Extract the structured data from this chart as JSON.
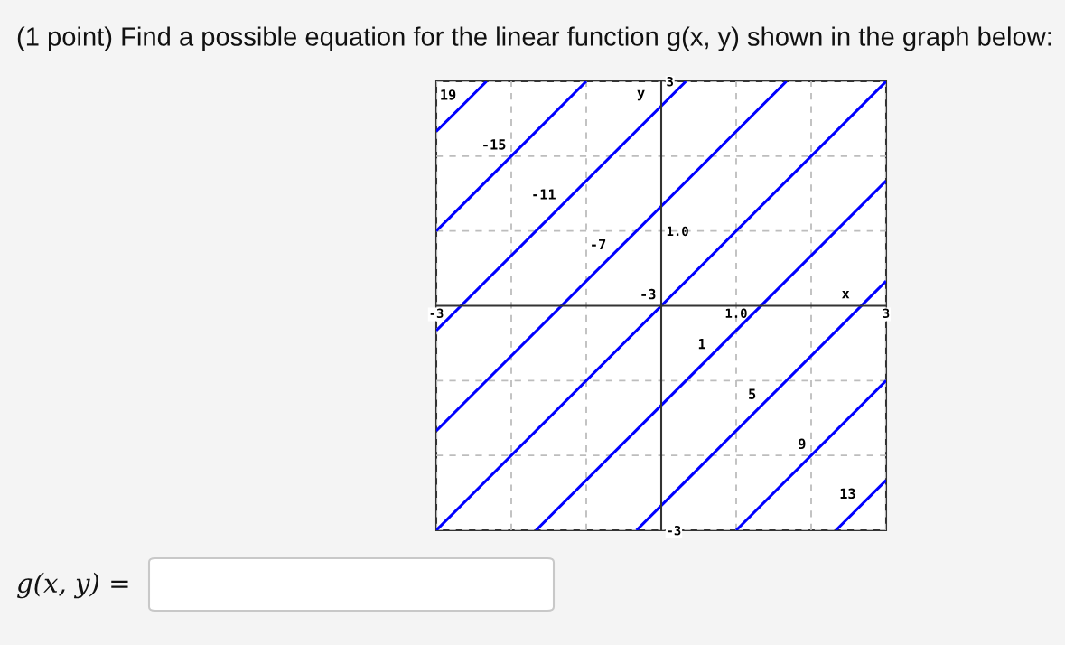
{
  "chart_data": {
    "type": "line",
    "title": "(1 point) Find a possible equation for the linear function g(x, y) shown in the graph below:",
    "xlabel": "x",
    "ylabel": "y",
    "xlim": [
      -3,
      3
    ],
    "ylim": [
      -3,
      3
    ],
    "xticks": [
      -3,
      {
        "value": -2,
        "label": null
      },
      {
        "value": -1,
        "label": null
      },
      {
        "value": 1,
        "label": "1.0"
      },
      {
        "value": 2,
        "label": null
      },
      3
    ],
    "yticks": [
      -3,
      {
        "value": -2,
        "label": null
      },
      {
        "value": -1,
        "label": null
      },
      {
        "value": 1,
        "label": "1.0"
      },
      {
        "value": 2,
        "label": null
      },
      3
    ],
    "grid": true,
    "series": [
      {
        "name": "19",
        "color": "#0000ff",
        "x": [
          -3,
          -2.33
        ],
        "values": [
          2.33,
          3
        ]
      },
      {
        "name": "-15",
        "color": "#0000ff",
        "x": [
          -3,
          -1
        ],
        "values": [
          1,
          3
        ]
      },
      {
        "name": "-11",
        "color": "#0000ff",
        "x": [
          -3,
          0.33
        ],
        "values": [
          -0.33,
          3
        ]
      },
      {
        "name": "-7",
        "color": "#0000ff",
        "x": [
          -3,
          1.67
        ],
        "values": [
          -1.67,
          3
        ]
      },
      {
        "name": "-3",
        "color": "#0000ff",
        "x": [
          -3,
          3
        ],
        "values": [
          -3,
          3
        ]
      },
      {
        "name": "1",
        "color": "#0000ff",
        "x": [
          -1.67,
          3
        ],
        "values": [
          -3,
          1.67
        ]
      },
      {
        "name": "5",
        "color": "#0000ff",
        "x": [
          -0.33,
          3
        ],
        "values": [
          -3,
          0.33
        ]
      },
      {
        "name": "9",
        "color": "#0000ff",
        "x": [
          1,
          3
        ],
        "values": [
          -3,
          -1
        ]
      },
      {
        "name": "13",
        "color": "#0000ff",
        "x": [
          2.33,
          3
        ],
        "values": [
          -3,
          -2.33
        ]
      }
    ],
    "annotations": [
      "g(x, y) ="
    ]
  }
}
